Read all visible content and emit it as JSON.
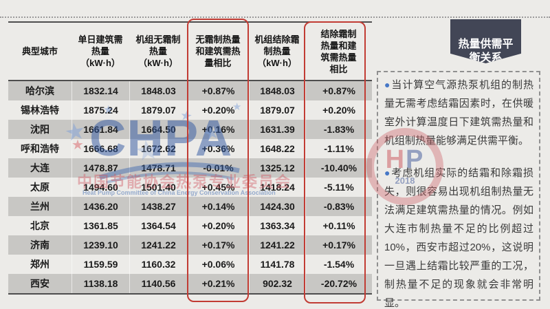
{
  "badge": {
    "label": "热量供需平\n衡关系",
    "color": "#424656"
  },
  "table": {
    "headers": [
      "典型城市",
      "单日建筑需\n热量\n（kW·h）",
      "机组无霜制\n热量\n（kW·h）",
      "无霜制热量\n和建筑需热\n量相比",
      "机组结除霜\n制热量\n（kW·h）",
      "结除霜制\n热量和建\n筑需热量\n相比"
    ],
    "rows": [
      {
        "city": "哈尔滨",
        "values": [
          "1832.14",
          "1848.03",
          "+0.87%",
          "1848.03",
          "+0.87%"
        ]
      },
      {
        "city": "锡林浩特",
        "values": [
          "1875.24",
          "1879.07",
          "+0.20%",
          "1879.07",
          "+0.20%"
        ]
      },
      {
        "city": "沈阳",
        "values": [
          "1661.84",
          "1664.50",
          "+0.16%",
          "1631.39",
          "-1.83%"
        ]
      },
      {
        "city": "呼和浩特",
        "values": [
          "1666.68",
          "1672.62",
          "+0.36%",
          "1648.22",
          "-1.11%"
        ]
      },
      {
        "city": "大连",
        "values": [
          "1478.87",
          "1478.71",
          "-0.01%",
          "1325.12",
          "-10.40%"
        ]
      },
      {
        "city": "太原",
        "values": [
          "1494.60",
          "1501.40",
          "+0.45%",
          "1418.24",
          "-5.11%"
        ]
      },
      {
        "city": "兰州",
        "values": [
          "1436.20",
          "1438.27",
          "+0.14%",
          "1424.30",
          "-0.83%"
        ]
      },
      {
        "city": "北京",
        "values": [
          "1361.85",
          "1364.54",
          "+0.20%",
          "1363.34",
          "+0.11%"
        ]
      },
      {
        "city": "济南",
        "values": [
          "1239.10",
          "1241.22",
          "+0.17%",
          "1241.22",
          "+0.17%"
        ]
      },
      {
        "city": "郑州",
        "values": [
          "1159.59",
          "1160.32",
          "+0.06%",
          "1141.78",
          "-1.54%"
        ]
      },
      {
        "city": "西安",
        "values": [
          "1138.18",
          "1140.56",
          "+0.21%",
          "902.32",
          "-20.72%"
        ]
      }
    ],
    "highlight_color": "#c13b33"
  },
  "notes": {
    "bullet_icon": "●",
    "items": [
      "当计算空气源热泵机组的制热量无需考虑结霜因素时，在供暖室外计算温度日下建筑需热量和机组制热量能够满足供需平衡。",
      "考虑机组实际的结霜和除霜损失，则很容易出现机组制热量无法满足建筑需热量的情况。例如大连市制热量不足的比例超过10%，西安市超过20%，这说明一旦遇上结霜比较严重的工况，制热量不足的现象就会非常明显。"
    ],
    "bullet_color": "#4677c6"
  },
  "watermark": {
    "logo_text": "CHPA",
    "cn_text": "中国节能协会热泵专业委员会",
    "en_text": "Heat Pump Committee of China Energy Conservation Association",
    "stamp_h": "H",
    "stamp_p": "P",
    "stamp_year": "2018",
    "star_icon": "★"
  }
}
